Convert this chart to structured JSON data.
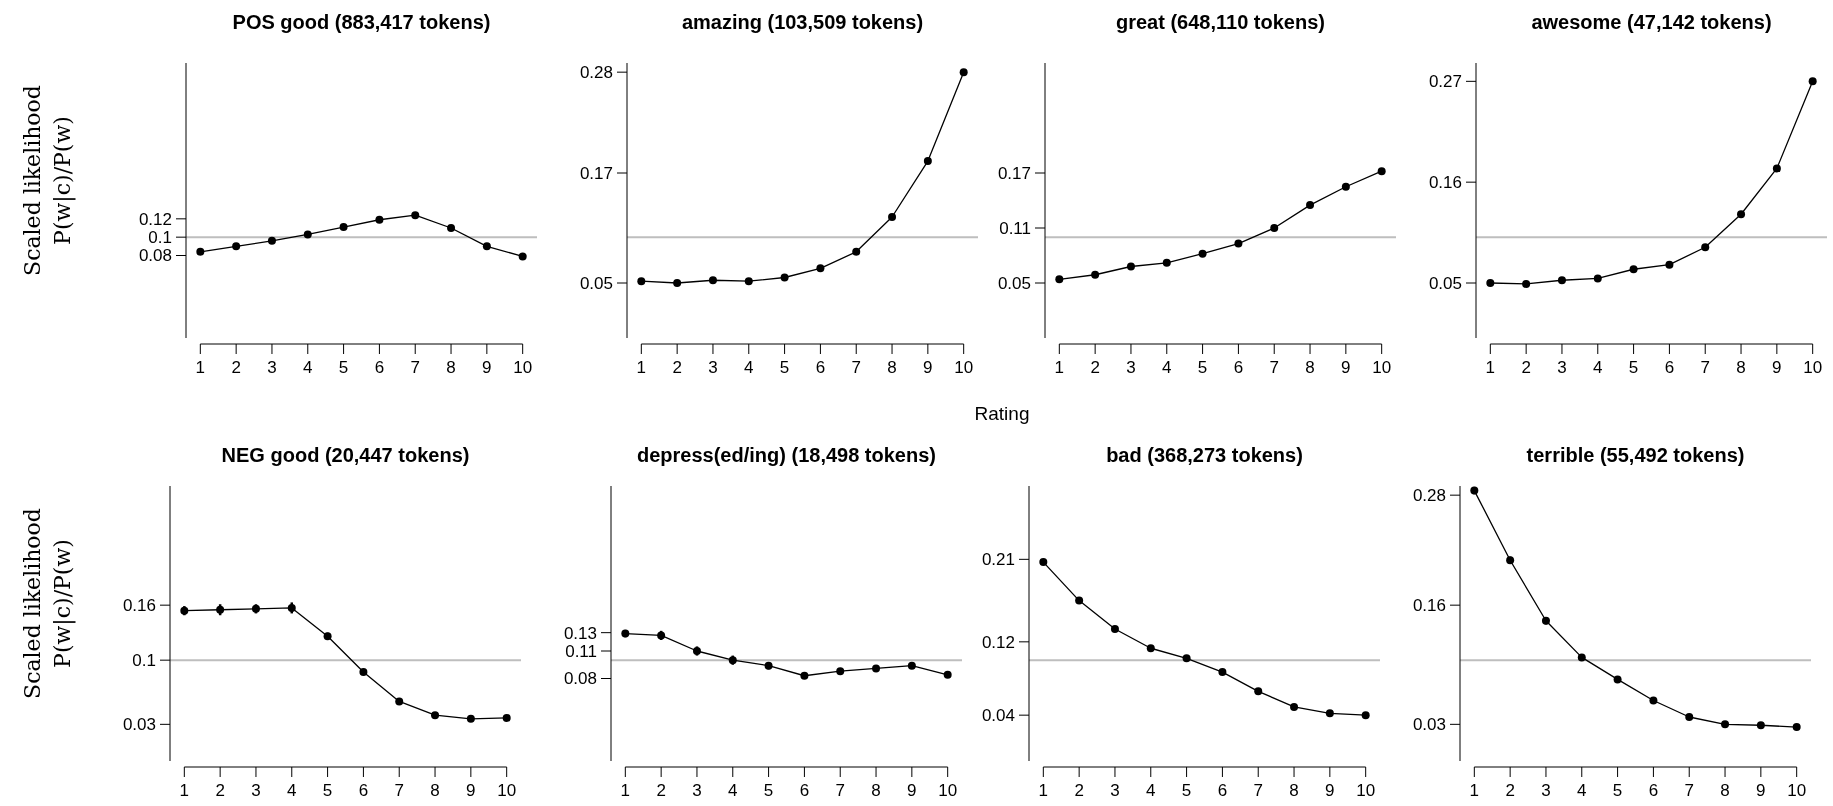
{
  "chart_data": [
    {
      "type": "line",
      "title": "POS good (883,417 tokens)",
      "ylabel": "Scaled likelihood\nP(w|c)/P(w)",
      "x": [
        1,
        2,
        3,
        4,
        5,
        6,
        7,
        8,
        9,
        10
      ],
      "xlim": [
        0.6,
        10.4
      ],
      "xticks": [
        1,
        2,
        3,
        4,
        5,
        6,
        7,
        8,
        9,
        10
      ],
      "ylim": [
        -0.01,
        0.29
      ],
      "yticks": [
        0.08,
        0.1,
        0.12
      ],
      "marker": "circle",
      "ref_lines": [
        {
          "axis": "y",
          "value": 0.1,
          "color": "#bebebe"
        }
      ],
      "series": [
        {
          "color": "#000000",
          "values": [
            0.084,
            0.09,
            0.096,
            0.103,
            0.111,
            0.119,
            0.124,
            0.11,
            0.09,
            0.079
          ]
        }
      ]
    },
    {
      "type": "line",
      "title": "amazing (103,509 tokens)",
      "x": [
        1,
        2,
        3,
        4,
        5,
        6,
        7,
        8,
        9,
        10
      ],
      "xlim": [
        0.6,
        10.4
      ],
      "xticks": [
        1,
        2,
        3,
        4,
        5,
        6,
        7,
        8,
        9,
        10
      ],
      "ylim": [
        -0.01,
        0.29
      ],
      "yticks": [
        0.05,
        0.17,
        0.28
      ],
      "marker": "circle",
      "ref_lines": [
        {
          "axis": "y",
          "value": 0.1,
          "color": "#bebebe"
        }
      ],
      "series": [
        {
          "color": "#000000",
          "values": [
            0.052,
            0.05,
            0.053,
            0.052,
            0.056,
            0.066,
            0.084,
            0.122,
            0.183,
            0.28
          ]
        }
      ]
    },
    {
      "type": "line",
      "title": "great (648,110 tokens)",
      "xlabel": "Rating",
      "x": [
        1,
        2,
        3,
        4,
        5,
        6,
        7,
        8,
        9,
        10
      ],
      "xlim": [
        0.6,
        10.4
      ],
      "xticks": [
        1,
        2,
        3,
        4,
        5,
        6,
        7,
        8,
        9,
        10
      ],
      "ylim": [
        -0.01,
        0.29
      ],
      "yticks": [
        0.05,
        0.11,
        0.17
      ],
      "marker": "circle",
      "ref_lines": [
        {
          "axis": "y",
          "value": 0.1,
          "color": "#bebebe"
        }
      ],
      "series": [
        {
          "color": "#000000",
          "values": [
            0.054,
            0.059,
            0.068,
            0.072,
            0.082,
            0.093,
            0.11,
            0.135,
            0.155,
            0.172
          ]
        }
      ]
    },
    {
      "type": "line",
      "title": "awesome (47,142 tokens)",
      "x": [
        1,
        2,
        3,
        4,
        5,
        6,
        7,
        8,
        9,
        10
      ],
      "xlim": [
        0.6,
        10.4
      ],
      "xticks": [
        1,
        2,
        3,
        4,
        5,
        6,
        7,
        8,
        9,
        10
      ],
      "ylim": [
        -0.01,
        0.29
      ],
      "yticks": [
        0.05,
        0.16,
        0.27
      ],
      "marker": "circle",
      "ref_lines": [
        {
          "axis": "y",
          "value": 0.1,
          "color": "#bebebe"
        }
      ],
      "series": [
        {
          "color": "#000000",
          "values": [
            0.05,
            0.049,
            0.053,
            0.055,
            0.065,
            0.07,
            0.089,
            0.125,
            0.175,
            0.27
          ],
          "errors": [
            0.002,
            0.003,
            0.003,
            0.003,
            0.002,
            0.002,
            0.002,
            0.003,
            0.003,
            0.003
          ]
        }
      ]
    },
    {
      "type": "line",
      "title": "NEG good (20,447 tokens)",
      "ylabel": "Scaled likelihood\nP(w|c)/P(w)",
      "x": [
        1,
        2,
        3,
        4,
        5,
        6,
        7,
        8,
        9,
        10
      ],
      "xlim": [
        0.6,
        10.4
      ],
      "xticks": [
        1,
        2,
        3,
        4,
        5,
        6,
        7,
        8,
        9,
        10
      ],
      "ylim": [
        -0.01,
        0.29
      ],
      "yticks": [
        0.03,
        0.1,
        0.16
      ],
      "marker": "circle",
      "ref_lines": [
        {
          "axis": "y",
          "value": 0.1,
          "color": "#bebebe"
        }
      ],
      "series": [
        {
          "color": "#000000",
          "values": [
            0.154,
            0.155,
            0.156,
            0.157,
            0.126,
            0.087,
            0.055,
            0.04,
            0.036,
            0.037
          ],
          "errors": [
            0.005,
            0.006,
            0.005,
            0.006,
            0.004,
            0.003,
            0.002,
            0.002,
            0.002,
            0.002
          ]
        }
      ]
    },
    {
      "type": "line",
      "title": "depress(ed/ing) (18,498 tokens)",
      "x": [
        1,
        2,
        3,
        4,
        5,
        6,
        7,
        8,
        9,
        10
      ],
      "xlim": [
        0.6,
        10.4
      ],
      "xticks": [
        1,
        2,
        3,
        4,
        5,
        6,
        7,
        8,
        9,
        10
      ],
      "ylim": [
        -0.01,
        0.29
      ],
      "yticks": [
        0.08,
        0.11,
        0.13
      ],
      "marker": "circle",
      "ref_lines": [
        {
          "axis": "y",
          "value": 0.1,
          "color": "#bebebe"
        }
      ],
      "series": [
        {
          "color": "#000000",
          "values": [
            0.129,
            0.127,
            0.11,
            0.1,
            0.094,
            0.083,
            0.088,
            0.091,
            0.094,
            0.084
          ],
          "errors": [
            0.004,
            0.005,
            0.005,
            0.005,
            0.004,
            0.003,
            0.003,
            0.003,
            0.003,
            0.002
          ]
        }
      ]
    },
    {
      "type": "line",
      "title": "bad (368,273 tokens)",
      "x": [
        1,
        2,
        3,
        4,
        5,
        6,
        7,
        8,
        9,
        10
      ],
      "xlim": [
        0.6,
        10.4
      ],
      "xticks": [
        1,
        2,
        3,
        4,
        5,
        6,
        7,
        8,
        9,
        10
      ],
      "ylim": [
        -0.01,
        0.29
      ],
      "yticks": [
        0.04,
        0.12,
        0.21
      ],
      "marker": "circle",
      "ref_lines": [
        {
          "axis": "y",
          "value": 0.1,
          "color": "#bebebe"
        }
      ],
      "series": [
        {
          "color": "#000000",
          "values": [
            0.207,
            0.165,
            0.134,
            0.113,
            0.102,
            0.087,
            0.066,
            0.049,
            0.042,
            0.04
          ]
        }
      ]
    },
    {
      "type": "line",
      "title": "terrible (55,492 tokens)",
      "x": [
        1,
        2,
        3,
        4,
        5,
        6,
        7,
        8,
        9,
        10
      ],
      "xlim": [
        0.6,
        10.4
      ],
      "xticks": [
        1,
        2,
        3,
        4,
        5,
        6,
        7,
        8,
        9,
        10
      ],
      "ylim": [
        -0.01,
        0.29
      ],
      "yticks": [
        0.03,
        0.16,
        0.28
      ],
      "marker": "circle",
      "ref_lines": [
        {
          "axis": "y",
          "value": 0.1,
          "color": "#bebebe"
        }
      ],
      "series": [
        {
          "color": "#000000",
          "values": [
            0.285,
            0.209,
            0.143,
            0.103,
            0.079,
            0.056,
            0.038,
            0.03,
            0.029,
            0.027
          ],
          "errors": [
            0.004,
            0.004,
            0.004,
            0.002,
            0.002,
            0.002,
            0.001,
            0.001,
            0.001,
            0.001
          ]
        }
      ]
    }
  ]
}
